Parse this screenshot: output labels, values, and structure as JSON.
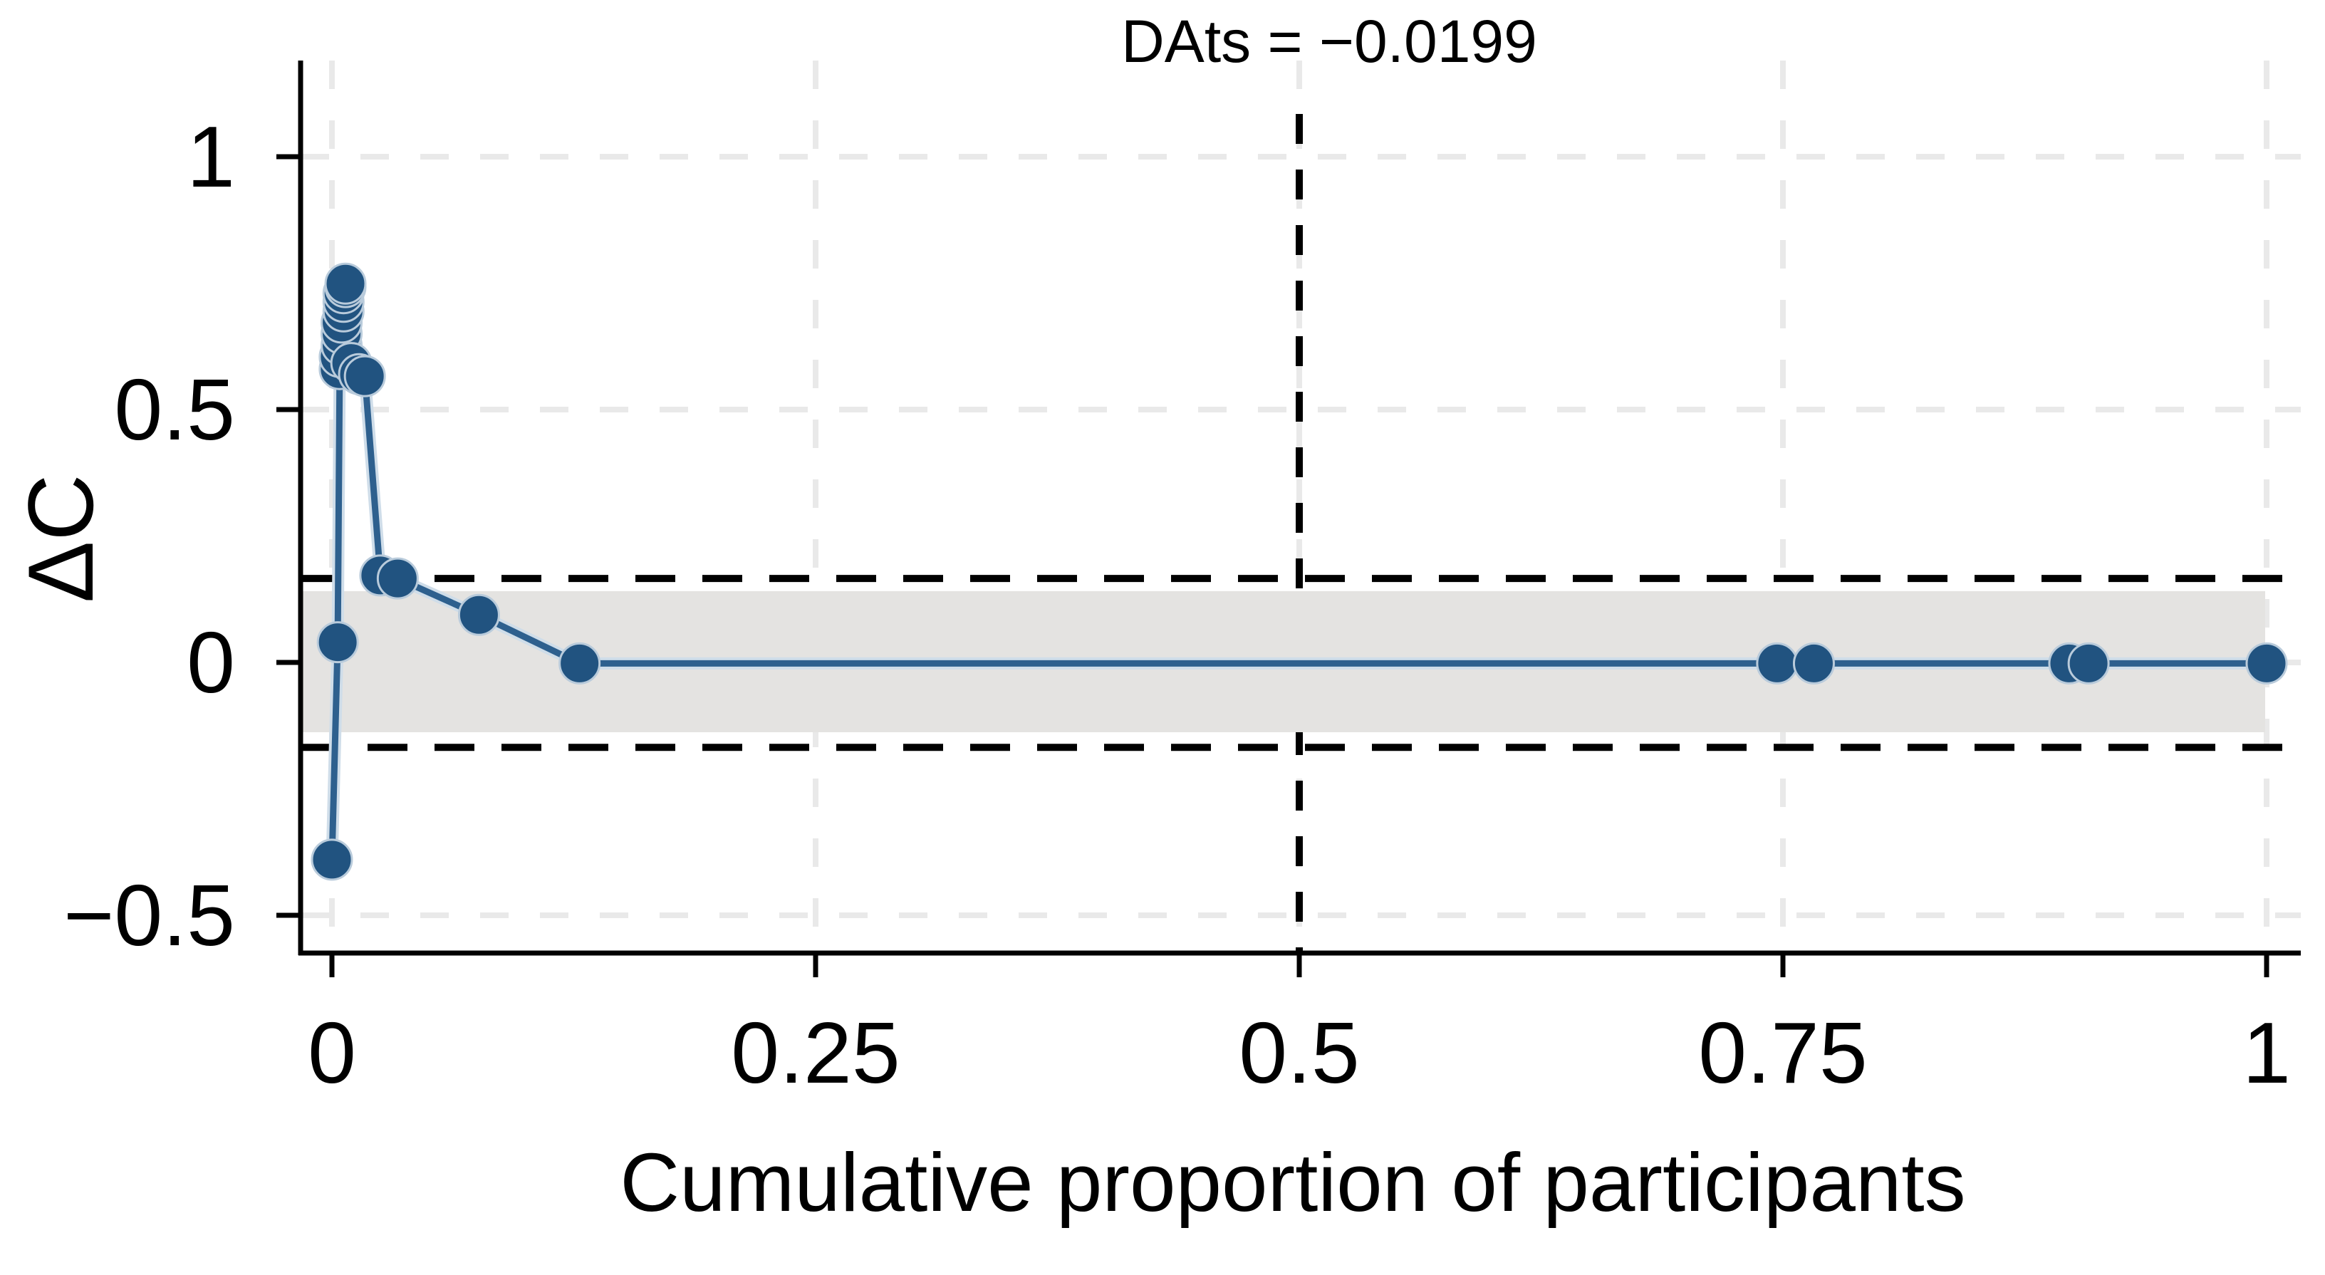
{
  "chart_data": {
    "type": "line",
    "title": "DAts = −0.0199",
    "xlabel": "Cumulative proportion of participants",
    "ylabel": "ΔC",
    "x_tick_labels": [
      "0",
      "0.25",
      "0.5",
      "0.75",
      "1"
    ],
    "x_tick_values": [
      0,
      0.25,
      0.5,
      0.75,
      1
    ],
    "y_tick_labels": [
      "1",
      "0.5",
      "0",
      "−0.5"
    ],
    "y_tick_values": [
      1,
      0.5,
      0,
      -0.5
    ],
    "xlim": [
      -0.016,
      1.018
    ],
    "ylim": [
      -0.577,
      1.19
    ],
    "grid": "faint dashed gridlines at every x and y tick",
    "legend_position": "none",
    "reference_lines": {
      "vertical_dashed_x": 0.5,
      "upper_dashed_y": 0.166,
      "lower_dashed_y": -0.168,
      "shaded_band_top": 0.141,
      "shaded_band_bottom": -0.138
    },
    "series": [
      {
        "name": "ΔC by cumulative proportion of participants",
        "marker": "filled-circle",
        "points": [
          [
            0.0,
            -0.39
          ],
          [
            0.003,
            0.04
          ],
          [
            0.004,
            0.58
          ],
          [
            0.004,
            0.604
          ],
          [
            0.005,
            0.627
          ],
          [
            0.005,
            0.65
          ],
          [
            0.005,
            0.672
          ],
          [
            0.006,
            0.694
          ],
          [
            0.006,
            0.713
          ],
          [
            0.006,
            0.73
          ],
          [
            0.007,
            0.742
          ],
          [
            0.007,
            0.749
          ],
          [
            0.01,
            0.592
          ],
          [
            0.014,
            0.57
          ],
          [
            0.017,
            0.566
          ],
          [
            0.025,
            0.172
          ],
          [
            0.034,
            0.166
          ],
          [
            0.076,
            0.094
          ],
          [
            0.128,
            -0.002
          ],
          [
            0.747,
            -0.002
          ],
          [
            0.766,
            -0.002
          ],
          [
            0.898,
            -0.002
          ],
          [
            0.908,
            -0.002
          ],
          [
            1.0,
            -0.002
          ]
        ]
      }
    ],
    "colors": {
      "marker_fill": "#215380",
      "line": "#2e608e",
      "line_halo": "#cfdde9",
      "marker_halo": "#b9cbdb",
      "band_fill": "#e4e3e1",
      "dashed_reference": "#000000",
      "gridline": "#e9e9e9",
      "axis": "#000000",
      "text": "#000000",
      "background": "#ffffff"
    }
  }
}
